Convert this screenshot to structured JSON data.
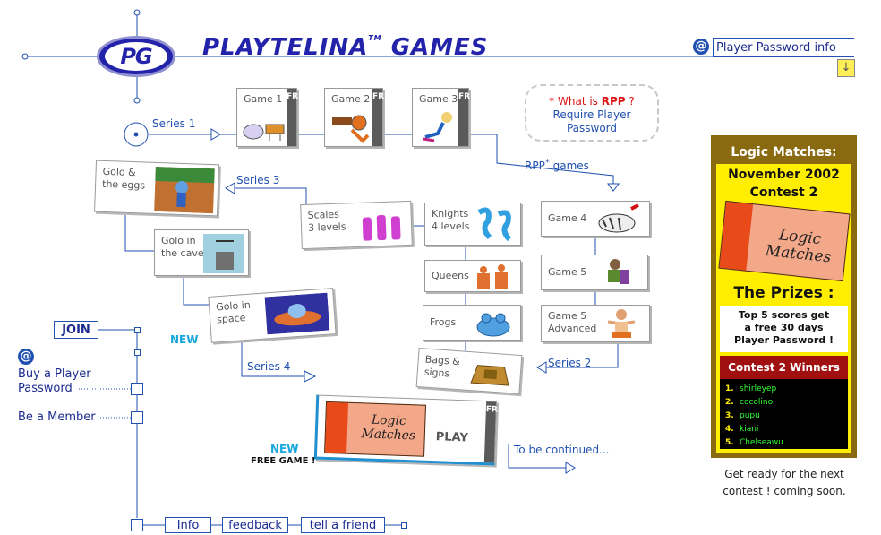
{
  "header": {
    "logo_text": "PG",
    "title": "PLAYTELINA",
    "title_tm": "TM",
    "title_games": "GAMES",
    "player_password_info": "Player Password info",
    "swirl_glyph": "@",
    "down_glyph": "↓"
  },
  "games": {
    "game1": "Game 1",
    "game2": "Game 2",
    "game3": "Game 3",
    "free_label": "FREE",
    "series1": "Series 1",
    "rpp_games": "RPP",
    "rpp_games_star": "*",
    "rpp_games_suffix": "games",
    "series2": "Series 2",
    "series3": "Series 3",
    "series4": "Series 4",
    "game4": "Game 4",
    "game5": "Game 5",
    "game5_adv_1": "Game 5",
    "game5_adv_2": "Advanced",
    "knights_1": "Knights",
    "knights_2": "4 levels",
    "scales_1": "Scales",
    "scales_2": "3 levels",
    "queens": "Queens",
    "frogs": "Frogs",
    "bags_1": "Bags &",
    "bags_2": "signs",
    "golo_eggs_1": "Golo &",
    "golo_eggs_2": "the eggs",
    "golo_cave_1": "Golo in",
    "golo_cave_2": "the cave",
    "golo_space_1": "Golo in",
    "golo_space_2": "space",
    "new_label": "NEW",
    "new_label_2": "NEW",
    "free_game": "FREE GAME !",
    "play_label": "PLAY",
    "logic_matches_1": "Logic",
    "logic_matches_2": "Matches",
    "to_be_continued": "To be continued..."
  },
  "rpp_box": {
    "star": "*",
    "question_pre": "What is",
    "question_rpp": "RPP",
    "question_mark": "?",
    "line2": "Require Player",
    "line3": "Password"
  },
  "contest": {
    "title": "Logic Matches:",
    "date": "November 2002",
    "contest": "Contest 2",
    "box_word_1": "Logic",
    "box_word_2": "Matches",
    "prizes": "The Prizes :",
    "prize_desc_1": "Top 5 scores get",
    "prize_desc_2": "a free 30 days",
    "prize_desc_3": "Player Password !",
    "winners_title": "Contest 2 Winners",
    "winners": [
      {
        "rank": "1.",
        "name": "shirleyep"
      },
      {
        "rank": "2.",
        "name": "cocolino"
      },
      {
        "rank": "3.",
        "name": "pupu"
      },
      {
        "rank": "4.",
        "name": "kiani"
      },
      {
        "rank": "5.",
        "name": "Chelseawu"
      }
    ],
    "footer_1": "Get ready for the next",
    "footer_2": "contest ! coming soon."
  },
  "nav": {
    "join": "JOIN",
    "buy_1": "Buy a Player",
    "buy_2": "Password",
    "member": "Be a Member",
    "info": "Info",
    "feedback": "feedback",
    "tell_friend": "tell a friend"
  },
  "colors": {
    "brand_blue": "#2222aa",
    "link_blue": "#2050b0",
    "contest_yellow": "#ffee00",
    "contest_brown": "#8a6a10",
    "winners_red": "#a01010",
    "new_cyan": "#18a8e0"
  }
}
